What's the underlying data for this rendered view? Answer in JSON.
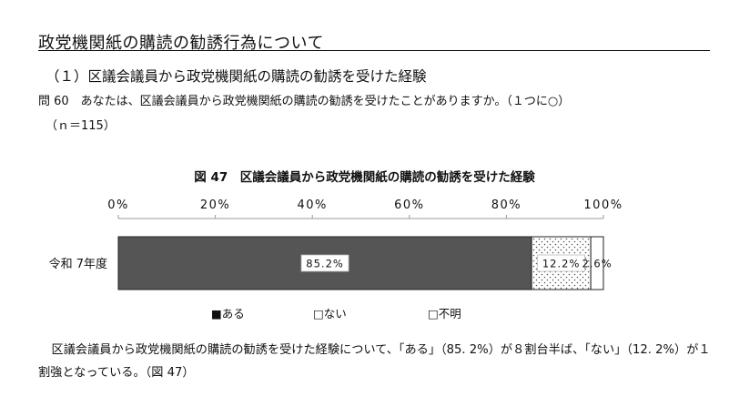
{
  "section": {
    "title": "政党機関紙の購読の勧誘行為について"
  },
  "subsection": {
    "title": "（１）区議会議員から政党機関紙の購読の勧誘を受けた経験"
  },
  "question": {
    "text": "問 60　あなたは、区議会議員から政党機関紙の購読の勧誘を受けたことがありますか。（１つに○）",
    "sample": "（ｎ＝115）"
  },
  "chart_data": {
    "type": "bar",
    "orientation": "horizontal",
    "stacked": true,
    "title": "図 47　区議会議員から政党機関紙の購読の勧誘を受けた経験",
    "categories": [
      "令和 7年度"
    ],
    "series": [
      {
        "name": "ある",
        "values": [
          85.2
        ],
        "label": "85.2%",
        "color": "#555555",
        "pattern": "solid"
      },
      {
        "name": "ない",
        "values": [
          12.2
        ],
        "label": "12.2%",
        "color": "#ffffff",
        "pattern": "dotted"
      },
      {
        "name": "不明",
        "values": [
          2.6
        ],
        "label": "2.6%",
        "color": "#ffffff",
        "pattern": "blank"
      }
    ],
    "xlim": [
      0,
      100
    ],
    "x_ticks": [
      0,
      20,
      40,
      60,
      80,
      100
    ],
    "x_tick_labels": [
      "0%",
      "20%",
      "40%",
      "60%",
      "80%",
      "100%"
    ],
    "legend": {
      "placement": "bottom",
      "items": [
        "■ある",
        "□ない",
        "□不明"
      ]
    },
    "grid": false
  },
  "paragraph": {
    "text": "区議会議員から政党機関紙の購読の勧誘を受けた経験について、「ある」（85. 2%）が８割台半ば、「ない」（12. 2%）が１割強となっている。（図 47）"
  }
}
